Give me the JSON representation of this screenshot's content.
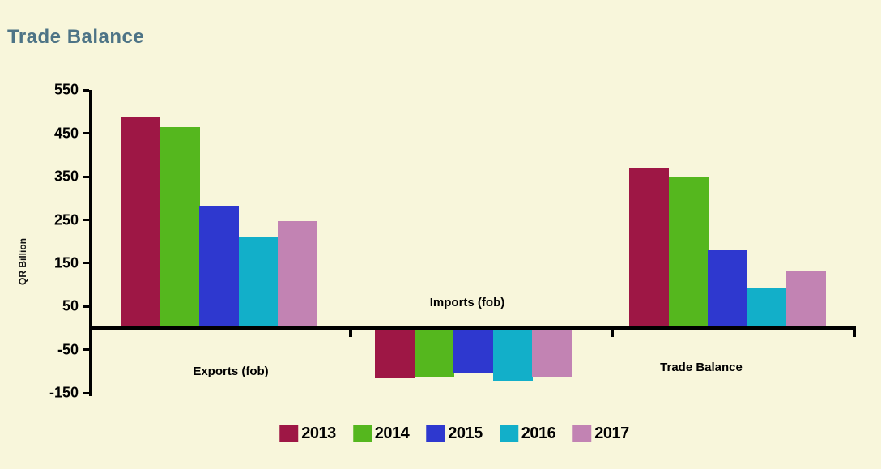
{
  "title": "Trade Balance",
  "chart_data": {
    "type": "bar",
    "title": "Trade Balance",
    "ylabel": "QR Billion",
    "xlabel": "",
    "categories": [
      "Exports (fob)",
      "Imports (fob)",
      "Trade Balance"
    ],
    "series": [
      {
        "name": "2013",
        "color": "#9e1745",
        "values": [
          488,
          -117,
          371
        ]
      },
      {
        "name": "2014",
        "color": "#55b71e",
        "values": [
          465,
          -114,
          349
        ]
      },
      {
        "name": "2015",
        "color": "#2e38cf",
        "values": [
          283,
          -104,
          180
        ]
      },
      {
        "name": "2016",
        "color": "#12afc9",
        "values": [
          210,
          -121,
          92
        ]
      },
      {
        "name": "2017",
        "color": "#c283b3",
        "values": [
          247,
          -114,
          133
        ]
      }
    ],
    "yticks": [
      550,
      450,
      350,
      250,
      150,
      50,
      -50,
      -150
    ],
    "ylim": [
      -150,
      550
    ],
    "grid": false,
    "legend_position": "bottom",
    "legend_labels": [
      "2013",
      "2014",
      "2015",
      "2016",
      "2017"
    ]
  },
  "colors": {
    "background": "#f8f6db",
    "title_text": "#4e7486",
    "axis": "#000000",
    "label_text": "#000000"
  }
}
